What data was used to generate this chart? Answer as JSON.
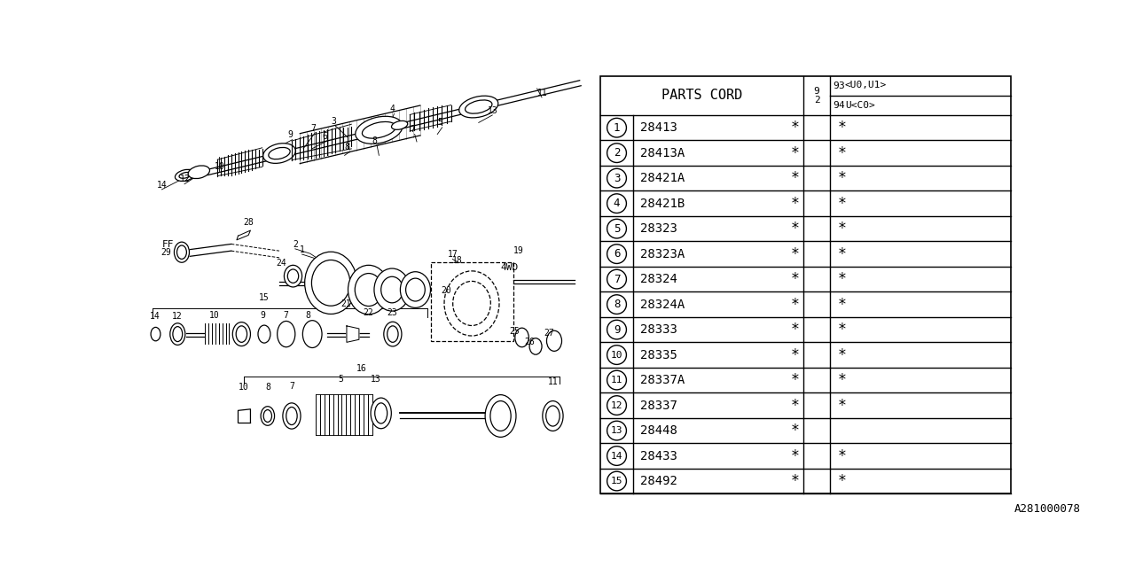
{
  "bg_color": "#ffffff",
  "parts": [
    {
      "num": "1",
      "code": "28413",
      "col1": true,
      "col2": true
    },
    {
      "num": "2",
      "code": "28413A",
      "col1": true,
      "col2": true
    },
    {
      "num": "3",
      "code": "28421A",
      "col1": true,
      "col2": true
    },
    {
      "num": "4",
      "code": "28421B",
      "col1": true,
      "col2": true
    },
    {
      "num": "5",
      "code": "28323",
      "col1": true,
      "col2": true
    },
    {
      "num": "6",
      "code": "28323A",
      "col1": true,
      "col2": true
    },
    {
      "num": "7",
      "code": "28324",
      "col1": true,
      "col2": true
    },
    {
      "num": "8",
      "code": "28324A",
      "col1": true,
      "col2": true
    },
    {
      "num": "9",
      "code": "28333",
      "col1": true,
      "col2": true
    },
    {
      "num": "10",
      "code": "28335",
      "col1": true,
      "col2": true
    },
    {
      "num": "11",
      "code": "28337A",
      "col1": true,
      "col2": true
    },
    {
      "num": "12",
      "code": "28337",
      "col1": true,
      "col2": true
    },
    {
      "num": "13",
      "code": "28448",
      "col1": true,
      "col2": false
    },
    {
      "num": "14",
      "code": "28433",
      "col1": true,
      "col2": true
    },
    {
      "num": "15",
      "code": "28492",
      "col1": true,
      "col2": true
    }
  ],
  "col_header1": "PARTS CORD",
  "ref_code": "A281000078"
}
